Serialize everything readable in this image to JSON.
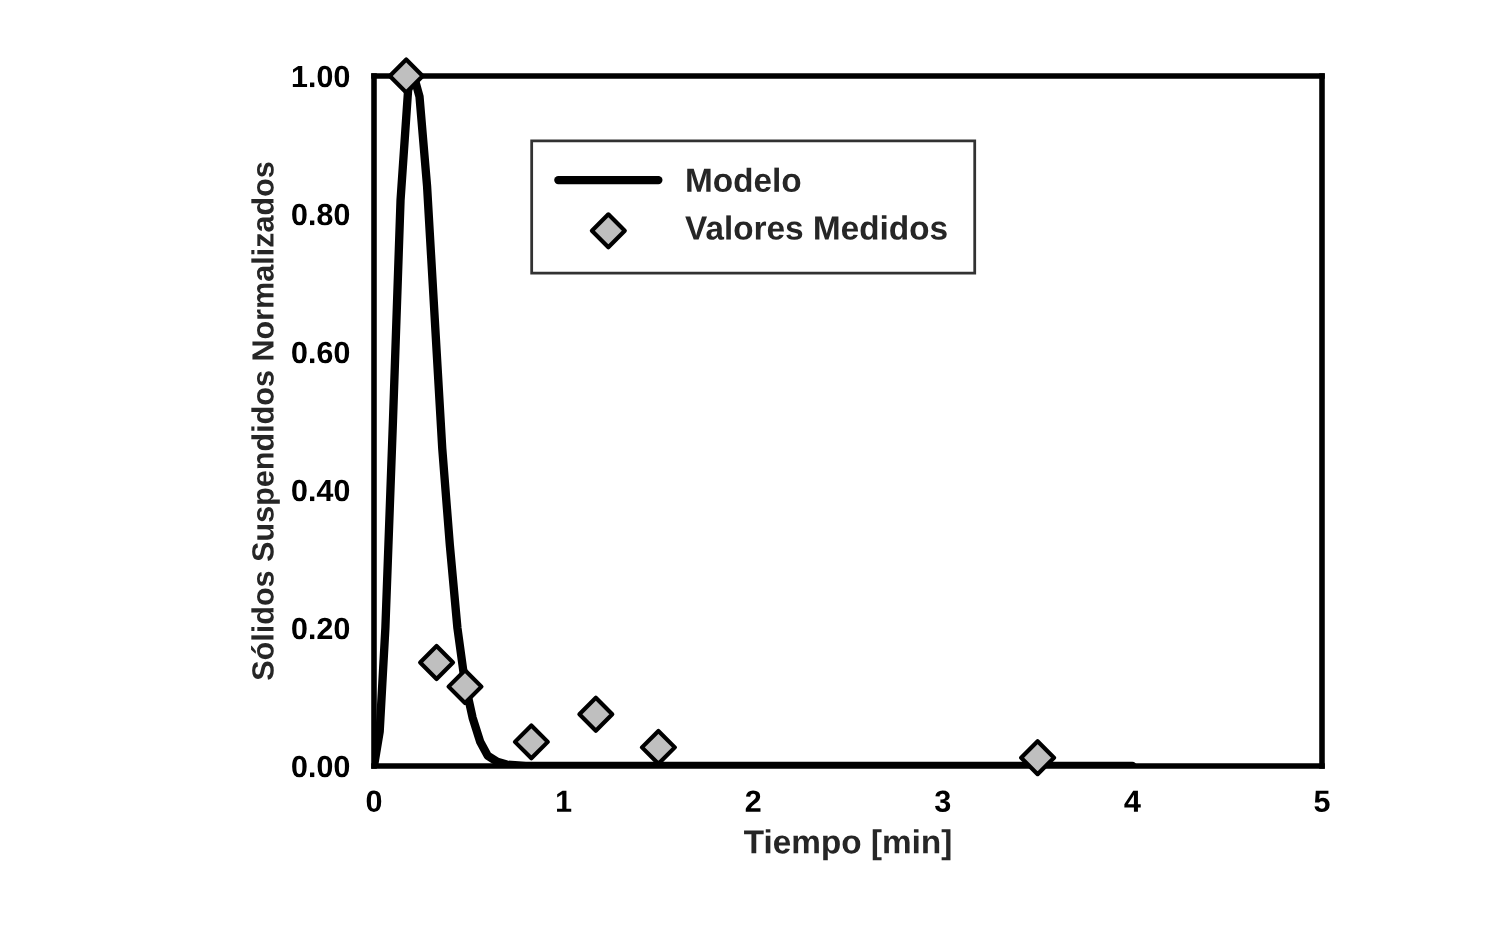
{
  "chart_data": {
    "type": "line",
    "xlabel": "Tiempo [min]",
    "ylabel": "Sólidos Suspendidos Normalizados",
    "xlim": [
      0,
      5
    ],
    "xticks": [
      0,
      1,
      2,
      3,
      4,
      5
    ],
    "ylim": [
      0,
      1
    ],
    "yticks": [
      {
        "value": 0,
        "label": "0.00"
      },
      {
        "value": 0.2,
        "label": "0.20"
      },
      {
        "value": 0.4,
        "label": "0.40"
      },
      {
        "value": 0.6,
        "label": "0.60"
      },
      {
        "value": 0.8,
        "label": "0.80"
      },
      {
        "value": 1,
        "label": "1.00"
      }
    ],
    "grid": false,
    "legend": "top",
    "series": [
      {
        "name": "Modelo",
        "color": "#000000",
        "marker": "none",
        "line_style": "solid",
        "x": [
          0,
          0.03,
          0.06,
          0.1,
          0.14,
          0.18,
          0.21,
          0.24,
          0.28,
          0.32,
          0.36,
          0.4,
          0.44,
          0.48,
          0.52,
          0.56,
          0.6,
          0.65,
          0.7,
          0.8,
          1,
          2,
          3,
          4
        ],
        "values": [
          0,
          0.05,
          0.2,
          0.5,
          0.82,
          0.98,
          1,
          0.97,
          0.84,
          0.65,
          0.46,
          0.32,
          0.2,
          0.12,
          0.07,
          0.035,
          0.015,
          0.006,
          0.002,
          0,
          0,
          0,
          0,
          0
        ]
      },
      {
        "name": "Valores Medidos",
        "type": "scatter",
        "color": "#bfbfbf",
        "marker": "diamond",
        "x": [
          0.17,
          0.33,
          0.48,
          0.83,
          1.17,
          1.5,
          3.5
        ],
        "values": [
          1.0,
          0.15,
          0.115,
          0.035,
          0.075,
          0.027,
          0.012
        ]
      }
    ]
  }
}
